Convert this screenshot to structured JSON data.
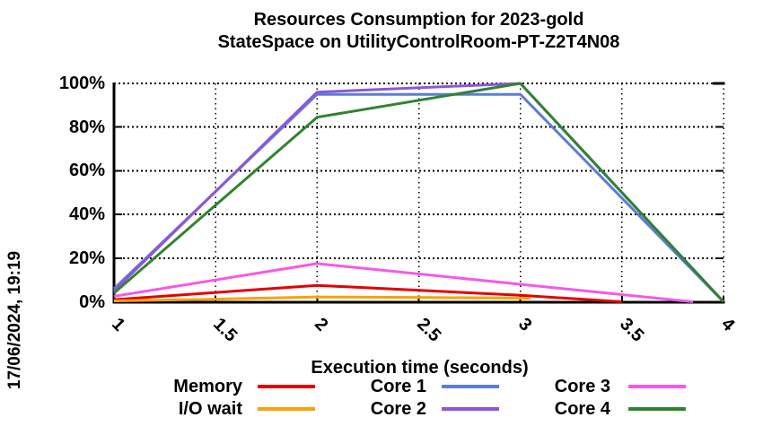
{
  "title": {
    "line1": "Resources Consumption for 2023-gold",
    "line2": "StateSpace on UtilityControlRoom-PT-Z2T4N08"
  },
  "timestamp": "17/06/2024, 19:19",
  "chart_data": {
    "type": "line",
    "title": "Resources Consumption for 2023-gold",
    "subtitle": "StateSpace on UtilityControlRoom-PT-Z2T4N08",
    "xlabel": "Execution time (seconds)",
    "ylabel": "",
    "xlim": [
      1,
      4
    ],
    "ylim": [
      0,
      100
    ],
    "x_ticks": [
      1,
      1.5,
      2,
      2.5,
      3,
      3.5,
      4
    ],
    "x_tick_labels": [
      "1",
      "1.5",
      "2",
      "2.5",
      "3",
      "3.5",
      "4"
    ],
    "y_ticks": [
      0,
      20,
      40,
      60,
      80,
      100
    ],
    "y_tick_labels": [
      "0%",
      "20%",
      "40%",
      "60%",
      "80%",
      "100%"
    ],
    "grid": true,
    "legend_position": "bottom",
    "colors": {
      "memory": "#e60000",
      "io_wait": "#f7a307",
      "core1": "#5b7cd9",
      "core2": "#8f55d8",
      "core3": "#f558ea",
      "core4": "#318331",
      "axis": "#000000",
      "grid": "#000000"
    },
    "series": [
      {
        "name": "Memory",
        "color": "#e60000",
        "points": [
          [
            1,
            1
          ],
          [
            2,
            7.5
          ],
          [
            3,
            3
          ],
          [
            3.5,
            0
          ]
        ]
      },
      {
        "name": "I/O wait",
        "color": "#f7a307",
        "points": [
          [
            1,
            0.4
          ],
          [
            1.5,
            1.2
          ],
          [
            2,
            2.2
          ],
          [
            2.5,
            2
          ],
          [
            3.05,
            1.6
          ]
        ]
      },
      {
        "name": "Core 1",
        "color": "#5b7cd9",
        "points": [
          [
            1,
            6
          ],
          [
            2,
            95
          ],
          [
            3,
            95
          ],
          [
            4,
            0
          ]
        ]
      },
      {
        "name": "Core 2",
        "color": "#8f55d8",
        "points": [
          [
            1,
            5
          ],
          [
            2,
            96
          ],
          [
            3,
            100
          ],
          [
            4,
            0
          ]
        ]
      },
      {
        "name": "Core 3",
        "color": "#f558ea",
        "points": [
          [
            1,
            2.5
          ],
          [
            2,
            17.5
          ],
          [
            3,
            8
          ],
          [
            3.85,
            0
          ]
        ]
      },
      {
        "name": "Core 4",
        "color": "#318331",
        "points": [
          [
            1,
            4
          ],
          [
            2,
            84.5
          ],
          [
            3,
            100
          ],
          [
            4,
            0
          ]
        ]
      }
    ]
  }
}
